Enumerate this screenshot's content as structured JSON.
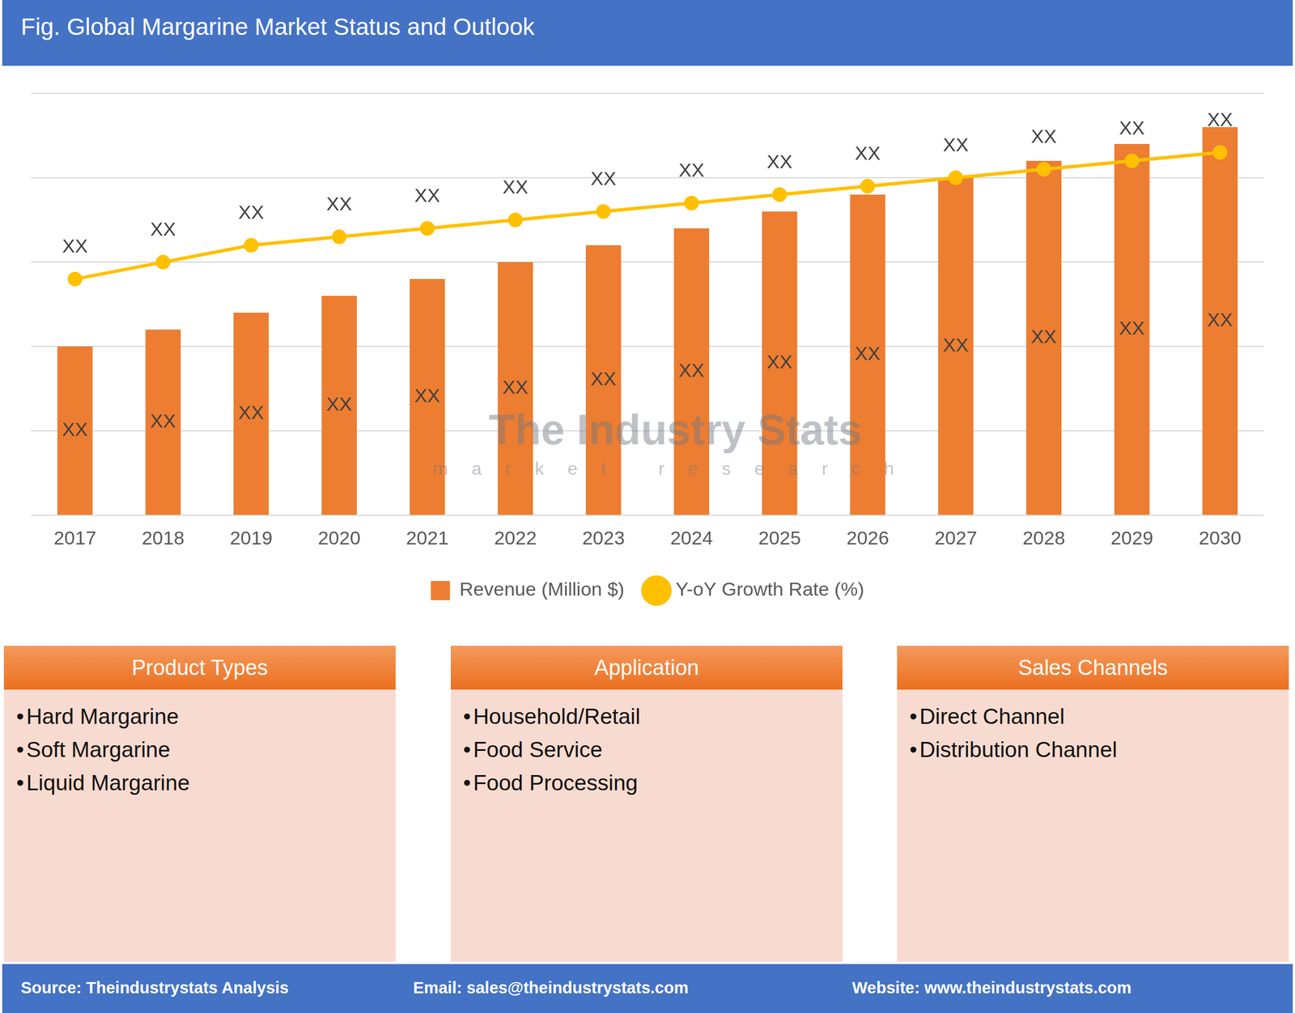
{
  "header": {
    "title": "Fig. Global Margarine Market Status and Outlook"
  },
  "chart_data": {
    "type": "bar",
    "categories": [
      "2017",
      "2018",
      "2019",
      "2020",
      "2021",
      "2022",
      "2023",
      "2024",
      "2025",
      "2026",
      "2027",
      "2028",
      "2029",
      "2030"
    ],
    "series": [
      {
        "name": "Revenue (Million $)",
        "type": "bar",
        "color": "#ed7d31",
        "values": [
          2.0,
          2.2,
          2.4,
          2.6,
          2.8,
          3.0,
          3.2,
          3.4,
          3.6,
          3.8,
          4.0,
          4.2,
          4.4,
          4.6
        ],
        "value_labels": [
          "XX",
          "XX",
          "XX",
          "XX",
          "XX",
          "XX",
          "XX",
          "XX",
          "XX",
          "XX",
          "XX",
          "XX",
          "XX",
          "XX"
        ]
      },
      {
        "name": "Y-oY Growth Rate (%)",
        "type": "line",
        "color": "#ffc000",
        "marker": "circle",
        "line_style": "solid",
        "values": [
          2.8,
          3.0,
          3.2,
          3.3,
          3.4,
          3.5,
          3.6,
          3.7,
          3.8,
          3.9,
          4.0,
          4.1,
          4.2,
          4.3
        ],
        "value_labels": [
          "XX",
          "XX",
          "XX",
          "XX",
          "XX",
          "XX",
          "XX",
          "XX",
          "XX",
          "XX",
          "XX",
          "XX",
          "XX",
          "XX"
        ]
      }
    ],
    "ylim": [
      0,
      5
    ],
    "yticks": [
      0,
      1,
      2,
      3,
      4,
      5
    ],
    "grid": true,
    "legend": "bottom",
    "data_labels": true,
    "tick_labels": "x"
  },
  "watermark": {
    "title": "The Industry Stats",
    "subtitle": "market research"
  },
  "panels": [
    {
      "title": "Product Types",
      "items": [
        "Hard Margarine",
        "Soft Margarine",
        "Liquid Margarine"
      ]
    },
    {
      "title": "Application",
      "items": [
        "Household/Retail",
        "Food Service",
        "Food Processing"
      ]
    },
    {
      "title": "Sales Channels",
      "items": [
        "Direct Channel",
        "Distribution Channel"
      ]
    }
  ],
  "footer": {
    "source": "Source: Theindustrystats Analysis",
    "email": "Email: sales@theindustrystats.com",
    "website": "Website: www.theindustrystats.com"
  }
}
